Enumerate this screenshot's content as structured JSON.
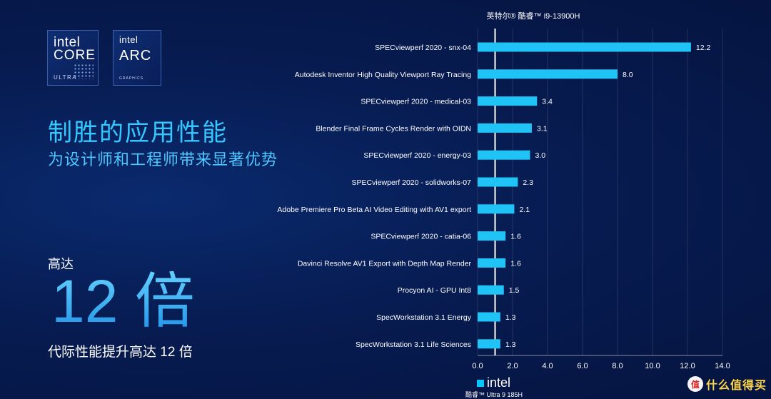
{
  "logos": {
    "core": {
      "brand": "intel",
      "line": "CORE",
      "sub": "ULTRA"
    },
    "arc": {
      "brand": "intel",
      "line": "ARC",
      "sub": "GRAPHICS"
    }
  },
  "headline": "制胜的应用性能",
  "subheadline": "为设计师和工程师带来显著优势",
  "up_to": "高达",
  "big_number": "12 倍",
  "footnote": "代际性能提升高达 12 倍",
  "footer": {
    "brand": "intel",
    "product": "酷睿™ Ultra 9 185H"
  },
  "watermark": {
    "icon": "值",
    "text": "什么值得买"
  },
  "colors": {
    "bar": "#1fc3f5",
    "background": "#071c52",
    "accent": "#35c8ff"
  },
  "chart_data": {
    "type": "bar",
    "orientation": "horizontal",
    "title": "英特尔® 酷睿™ i9-13900H",
    "categories": [
      "SPECviewperf 2020 - snx-04",
      "Autodesk Inventor High Quality Viewport Ray Tracing",
      "SPECviewperf 2020 - medical-03",
      "Blender Final Frame Cycles Render with OIDN",
      "SPECviewperf 2020 - energy-03",
      "SPECviewperf 2020 - solidworks-07",
      "Adobe Premiere Pro Beta AI Video Editing with AV1 export",
      "SPECviewperf 2020 - catia-06",
      "Davinci Resolve AV1 Export with Depth Map Render",
      "Procyon AI - GPU Int8",
      "SpecWorkstation 3.1 Energy",
      "SpecWorkstation 3.1 Life Sciences"
    ],
    "values": [
      12.2,
      8.0,
      3.4,
      3.1,
      3.0,
      2.3,
      2.1,
      1.6,
      1.6,
      1.5,
      1.3,
      1.3
    ],
    "value_labels": [
      "12.2",
      "8.0",
      "3.4",
      "3.1",
      "3.0",
      "2.3",
      "2.1",
      "1.6",
      "1.6",
      "1.5",
      "1.3",
      "1.3"
    ],
    "xlim": [
      0,
      14
    ],
    "xticks": [
      "0.0",
      "2.0",
      "4.0",
      "6.0",
      "8.0",
      "10.0",
      "12.0",
      "14.0"
    ],
    "baseline": 1.0,
    "xlabel": "",
    "ylabel": ""
  }
}
